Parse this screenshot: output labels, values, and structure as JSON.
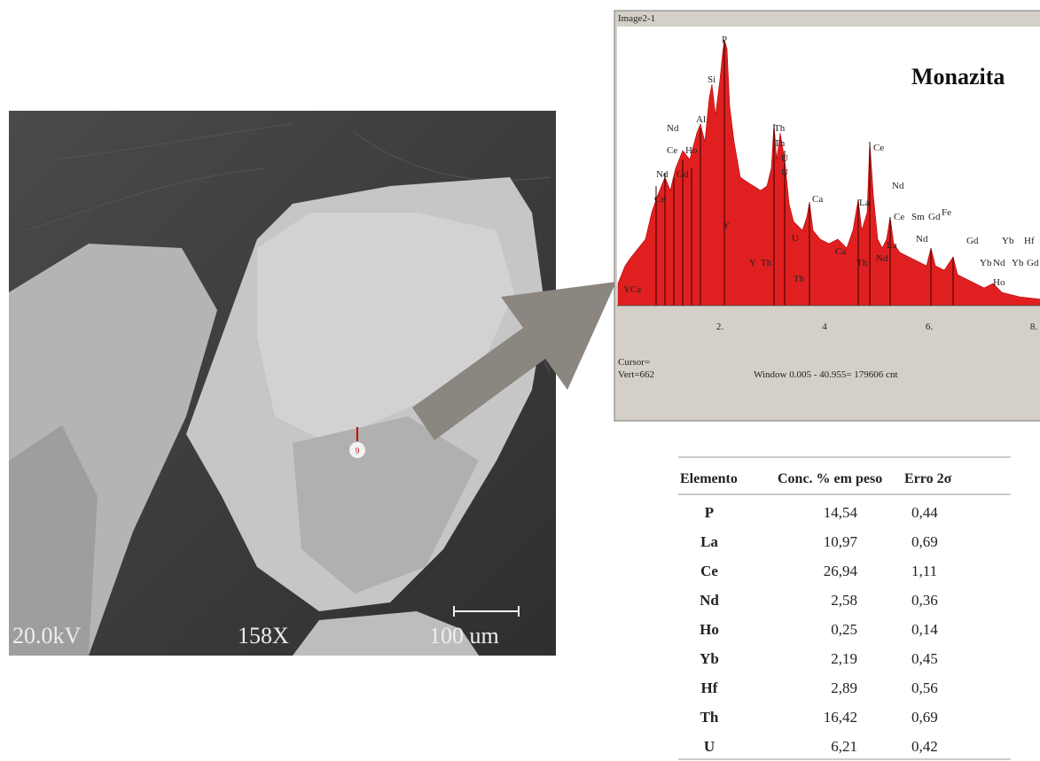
{
  "sem_image": {
    "voltage": "20.0kV",
    "magnification": "158X",
    "scale": "100 um",
    "spot": "9"
  },
  "spectrum": {
    "window_title": "Image2-1",
    "title": "Monazita",
    "axis_labels": [
      "2.",
      "4",
      "6.",
      "8."
    ],
    "cursor": "Cursor=",
    "vert": "Vert=662",
    "window": "Window 0.005 - 40.955=  179606 cnt",
    "peak_labels": [
      "P",
      "Si",
      "Al",
      "Nd",
      "Ce",
      "Ho",
      "Nd",
      "Gd",
      "Ce",
      "Th",
      "Th",
      "U",
      "U",
      "Ca",
      "Ce",
      "Nd",
      "La",
      "Ce",
      "Sm",
      "Gd",
      "Fe",
      "La",
      "Nd",
      "Gd",
      "Yb",
      "Hf",
      "Ca",
      "Th",
      "Nd",
      "Y",
      "Th",
      "YCa",
      "Ho",
      "Yb",
      "Nd",
      "Yb",
      "Gd",
      "U",
      "Th",
      "Y"
    ]
  },
  "table": {
    "headers": [
      "Elemento",
      "Conc. % em peso",
      "Erro 2σ"
    ],
    "rows": [
      [
        "P",
        "14,54",
        "0,44"
      ],
      [
        "La",
        "10,97",
        "0,69"
      ],
      [
        "Ce",
        "26,94",
        "1,11"
      ],
      [
        "Nd",
        "2,58",
        "0,36"
      ],
      [
        "Ho",
        "0,25",
        "0,14"
      ],
      [
        "Yb",
        "2,19",
        "0,45"
      ],
      [
        "Hf",
        "2,89",
        "0,56"
      ],
      [
        "Th",
        "16,42",
        "0,69"
      ],
      [
        "U",
        "6,21",
        "0,42"
      ]
    ]
  }
}
